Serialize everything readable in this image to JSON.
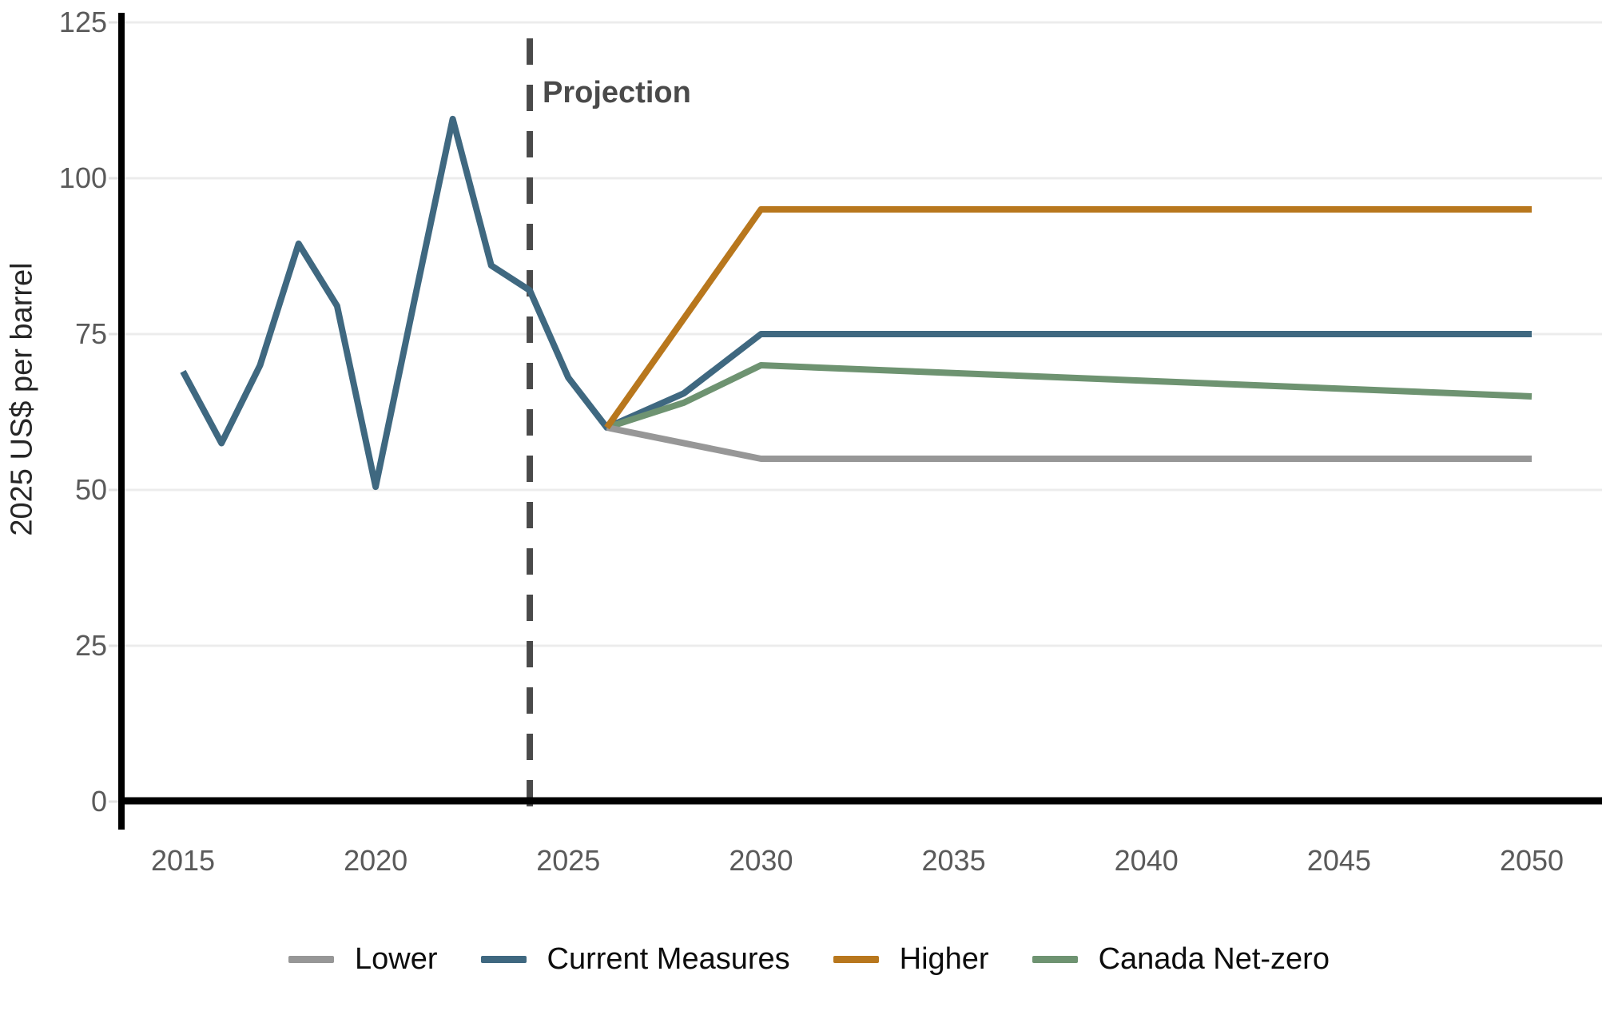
{
  "chart_data": {
    "type": "line",
    "title": "",
    "xlabel": "",
    "ylabel": "2025 US$ per barrel",
    "x_ticks": [
      2015,
      2020,
      2025,
      2030,
      2035,
      2040,
      2045,
      2050
    ],
    "y_ticks": [
      0,
      25,
      50,
      75,
      100,
      125
    ],
    "xlim": [
      2015,
      2050
    ],
    "ylim": [
      0,
      125
    ],
    "grid": true,
    "legend_position": "bottom",
    "annotation": {
      "label": "Projection",
      "x": 2024
    },
    "series": [
      {
        "name": "Lower",
        "color": "#979797",
        "points": [
          [
            2026,
            60
          ],
          [
            2030,
            55
          ],
          [
            2050,
            55
          ]
        ]
      },
      {
        "name": "Current Measures",
        "color": "#3f6880",
        "points": [
          [
            2015,
            69
          ],
          [
            2016,
            57.5
          ],
          [
            2017,
            70
          ],
          [
            2018,
            89.5
          ],
          [
            2019,
            79.5
          ],
          [
            2020,
            50.5
          ],
          [
            2021,
            80.25
          ],
          [
            2022,
            109.5
          ],
          [
            2023,
            86
          ],
          [
            2024,
            82
          ],
          [
            2025,
            68
          ],
          [
            2026,
            60
          ],
          [
            2028,
            65.5
          ],
          [
            2030,
            75
          ],
          [
            2050,
            75
          ]
        ]
      },
      {
        "name": "Higher",
        "color": "#b8771d",
        "points": [
          [
            2026,
            60
          ],
          [
            2030,
            95
          ],
          [
            2050,
            95
          ]
        ]
      },
      {
        "name": "Canada Net-zero",
        "color": "#6e9371",
        "points": [
          [
            2026,
            60
          ],
          [
            2028,
            64
          ],
          [
            2030,
            70
          ],
          [
            2050,
            65
          ]
        ]
      }
    ],
    "legend": [
      "Lower",
      "Current Measures",
      "Higher",
      "Canada Net-zero"
    ],
    "draw_order": [
      "Current Measures",
      "Canada Net-zero",
      "Lower",
      "Higher"
    ]
  },
  "colors": {
    "background": "#ffffff",
    "axis": "#000000",
    "grid": "#ececec",
    "axis_tick": "#e2e2e2",
    "tick_label": "#5a5a5a",
    "projection_line": "#4a4a4a",
    "projection_text": "#4a4a4a",
    "legend_text": "#0d0d0d",
    "ylabel_text": "#262626"
  }
}
